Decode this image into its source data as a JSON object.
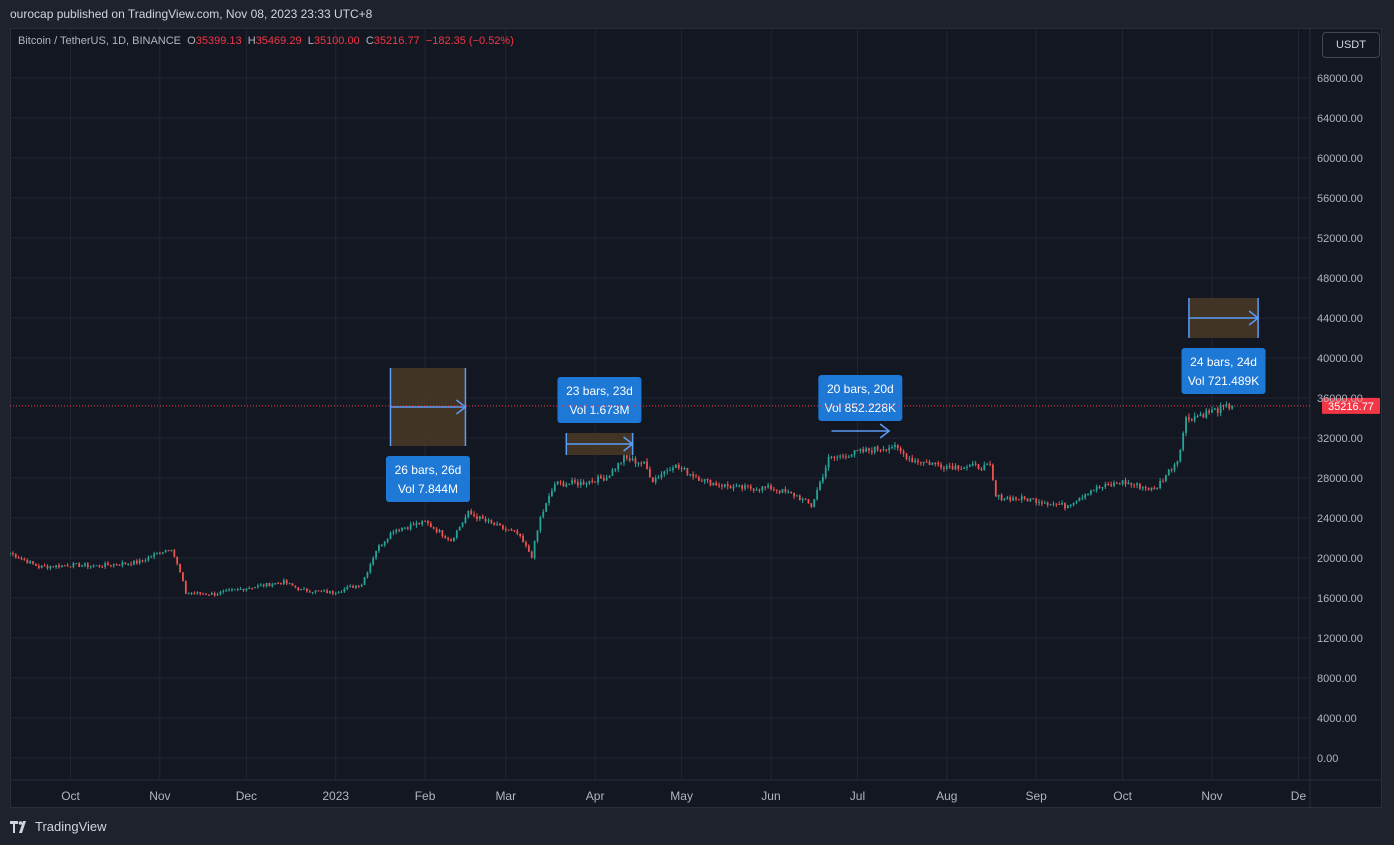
{
  "header": {
    "published": "ourocap published on TradingView.com, Nov 08, 2023 23:33 UTC+8"
  },
  "legend": {
    "symbol": "Bitcoin / TetherUS, 1D, BINANCE",
    "o_label": "O",
    "o": "35399.13",
    "h_label": "H",
    "h": "35469.29",
    "l_label": "L",
    "l": "35100.00",
    "c_label": "C",
    "c": "35216.77",
    "change": "−182.35 (−0.52%)"
  },
  "unit_button": "USDT",
  "brand": {
    "name": "TradingView"
  },
  "colors": {
    "up": "#26a69a",
    "down": "#ef5350",
    "price_line": "#f23645",
    "range_box": "#4a3a25",
    "range_line": "#5b9cf6",
    "range_label_bg": "#1e78d6",
    "grid": "#232632",
    "background": "#131722"
  },
  "chart_data": {
    "type": "candlestick",
    "title": "Bitcoin / TetherUS, 1D, BINANCE",
    "ylim": [
      0,
      70000
    ],
    "y_ticks": [
      "68000.00",
      "64000.00",
      "60000.00",
      "56000.00",
      "52000.00",
      "48000.00",
      "44000.00",
      "40000.00",
      "36000.00",
      "32000.00",
      "28000.00",
      "24000.00",
      "20000.00",
      "16000.00",
      "12000.00",
      "8000.00",
      "4000.00",
      "0.00"
    ],
    "x_ticks": [
      {
        "label": "Oct",
        "date": "2022-10-01"
      },
      {
        "label": "Nov",
        "date": "2022-11-01"
      },
      {
        "label": "Dec",
        "date": "2022-12-01"
      },
      {
        "label": "2023",
        "date": "2023-01-01"
      },
      {
        "label": "Feb",
        "date": "2023-02-01"
      },
      {
        "label": "Mar",
        "date": "2023-03-01"
      },
      {
        "label": "Apr",
        "date": "2023-04-01"
      },
      {
        "label": "May",
        "date": "2023-05-01"
      },
      {
        "label": "Jun",
        "date": "2023-06-01"
      },
      {
        "label": "Jul",
        "date": "2023-07-01"
      },
      {
        "label": "Aug",
        "date": "2023-08-01"
      },
      {
        "label": "Sep",
        "date": "2023-09-01"
      },
      {
        "label": "Oct",
        "date": "2023-10-01"
      },
      {
        "label": "Nov",
        "date": "2023-11-01"
      },
      {
        "label": "De",
        "date": "2023-12-01"
      }
    ],
    "x_range": [
      "2022-09-10",
      "2023-12-05"
    ],
    "last_price": 35216.77,
    "last_price_label": "35216.77",
    "price_path": [
      [
        "2022-09-10",
        20500
      ],
      [
        "2022-09-20",
        19100
      ],
      [
        "2022-10-01",
        19300
      ],
      [
        "2022-10-10",
        19200
      ],
      [
        "2022-10-25",
        19600
      ],
      [
        "2022-11-01",
        20600
      ],
      [
        "2022-11-05",
        21000
      ],
      [
        "2022-11-08",
        18500
      ],
      [
        "2022-11-10",
        16500
      ],
      [
        "2022-11-20",
        16400
      ],
      [
        "2022-12-01",
        17000
      ],
      [
        "2022-12-14",
        17600
      ],
      [
        "2022-12-20",
        16800
      ],
      [
        "2022-12-31",
        16550
      ],
      [
        "2023-01-10",
        17400
      ],
      [
        "2023-01-15",
        20800
      ],
      [
        "2023-01-21",
        22800
      ],
      [
        "2023-02-01",
        23600
      ],
      [
        "2023-02-10",
        21800
      ],
      [
        "2023-02-16",
        24500
      ],
      [
        "2023-02-25",
        23300
      ],
      [
        "2023-03-05",
        22400
      ],
      [
        "2023-03-10",
        20200
      ],
      [
        "2023-03-13",
        24000
      ],
      [
        "2023-03-18",
        27400
      ],
      [
        "2023-03-27",
        27500
      ],
      [
        "2023-04-05",
        28100
      ],
      [
        "2023-04-11",
        30000
      ],
      [
        "2023-04-18",
        29400
      ],
      [
        "2023-04-21",
        27800
      ],
      [
        "2023-04-28",
        29300
      ],
      [
        "2023-05-10",
        27600
      ],
      [
        "2023-05-20",
        27000
      ],
      [
        "2023-06-01",
        27000
      ],
      [
        "2023-06-10",
        26200
      ],
      [
        "2023-06-15",
        25200
      ],
      [
        "2023-06-21",
        29900
      ],
      [
        "2023-06-30",
        30500
      ],
      [
        "2023-07-13",
        31200
      ],
      [
        "2023-07-20",
        29800
      ],
      [
        "2023-08-01",
        29200
      ],
      [
        "2023-08-16",
        29100
      ],
      [
        "2023-08-18",
        26100
      ],
      [
        "2023-09-01",
        25800
      ],
      [
        "2023-09-11",
        25200
      ],
      [
        "2023-09-20",
        26800
      ],
      [
        "2023-10-01",
        27600
      ],
      [
        "2023-10-12",
        26800
      ],
      [
        "2023-10-20",
        29800
      ],
      [
        "2023-10-23",
        33900
      ],
      [
        "2023-10-31",
        34600
      ],
      [
        "2023-11-08",
        35216.77
      ]
    ],
    "annotations": [
      {
        "type": "date_range",
        "start": "2023-01-20",
        "end": "2023-02-15",
        "price_top": 39000,
        "price_bottom": 31200,
        "label_position": "below",
        "label_line1": "26 bars, 26d",
        "label_line2": "Vol 7.844M"
      },
      {
        "type": "date_range",
        "start": "2023-03-22",
        "end": "2023-04-14",
        "price_top": 32500,
        "price_bottom": 30300,
        "label_position": "above",
        "label_line1": "23 bars, 23d",
        "label_line2": "Vol 1.673M"
      },
      {
        "type": "date_range",
        "start": "2023-06-22",
        "end": "2023-07-12",
        "price_top": 32700,
        "price_bottom": 32700,
        "label_position": "above",
        "label_line1": "20 bars, 20d",
        "label_line2": "Vol 852.228K"
      },
      {
        "type": "date_range",
        "start": "2023-10-24",
        "end": "2023-11-17",
        "price_top": 46000,
        "price_bottom": 42000,
        "label_position": "below",
        "label_line1": "24 bars, 24d",
        "label_line2": "Vol 721.489K"
      }
    ]
  }
}
